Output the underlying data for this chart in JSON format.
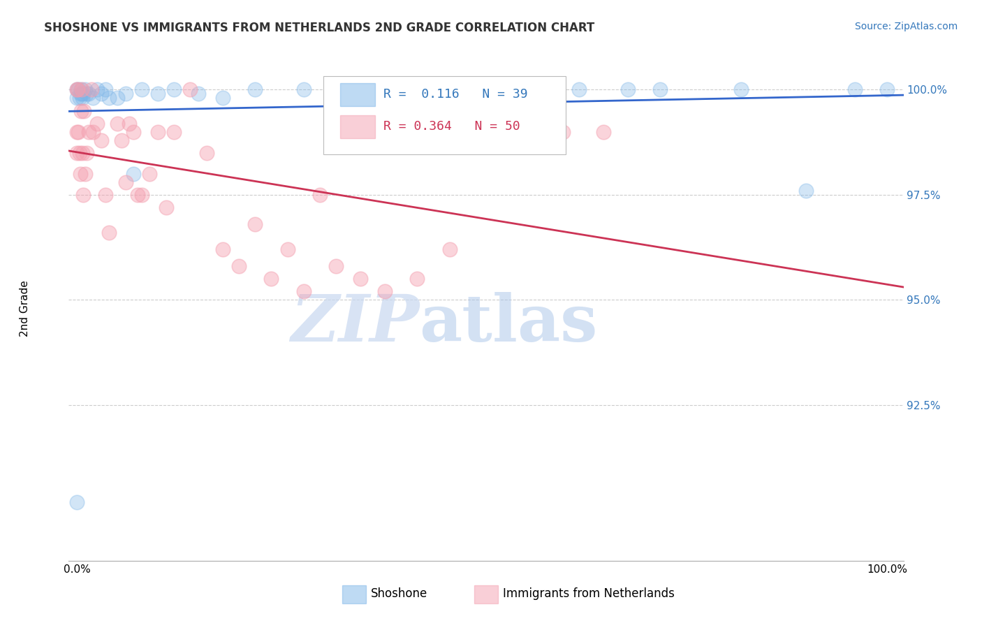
{
  "title": "SHOSHONE VS IMMIGRANTS FROM NETHERLANDS 2ND GRADE CORRELATION CHART",
  "source_text": "Source: ZipAtlas.com",
  "ylabel": "2nd Grade",
  "xlim": [
    -0.01,
    1.02
  ],
  "ylim": [
    0.888,
    1.008
  ],
  "yticks": [
    0.925,
    0.95,
    0.975,
    1.0
  ],
  "ytick_labels": [
    "92.5%",
    "95.0%",
    "97.5%",
    "100.0%"
  ],
  "xtick_positions": [
    0.0,
    0.5,
    1.0
  ],
  "xtick_labels": [
    "0.0%",
    "",
    "100.0%"
  ],
  "shoshone_color": "#7EB6E8",
  "immigrants_color": "#F4A0B0",
  "shoshone_line_color": "#3366CC",
  "immigrants_line_color": "#CC3355",
  "shoshone_R": 0.116,
  "shoshone_N": 39,
  "immigrants_R": 0.364,
  "immigrants_N": 50,
  "watermark_zip": "ZIP",
  "watermark_atlas": "atlas",
  "background_color": "#ffffff",
  "grid_color": "#cccccc",
  "shoshone_x": [
    0.0,
    0.0,
    0.0,
    0.002,
    0.003,
    0.004,
    0.005,
    0.006,
    0.007,
    0.008,
    0.01,
    0.012,
    0.015,
    0.02,
    0.025,
    0.03,
    0.035,
    0.04,
    0.05,
    0.06,
    0.07,
    0.08,
    0.1,
    0.12,
    0.15,
    0.18,
    0.22,
    0.28,
    0.32,
    0.36,
    0.5,
    0.55,
    0.62,
    0.68,
    0.72,
    0.82,
    0.9,
    0.96,
    1.0
  ],
  "shoshone_y": [
    0.902,
    0.998,
    1.0,
    1.0,
    0.998,
    0.999,
    1.0,
    0.999,
    0.998,
    0.999,
    1.0,
    0.999,
    0.999,
    0.998,
    1.0,
    0.999,
    1.0,
    0.998,
    0.998,
    0.999,
    0.98,
    1.0,
    0.999,
    1.0,
    0.999,
    0.998,
    1.0,
    1.0,
    1.0,
    1.0,
    1.0,
    1.0,
    1.0,
    1.0,
    1.0,
    1.0,
    0.976,
    1.0,
    1.0
  ],
  "immigrants_x": [
    0.0,
    0.0,
    0.0,
    0.001,
    0.002,
    0.003,
    0.004,
    0.005,
    0.006,
    0.007,
    0.008,
    0.009,
    0.01,
    0.012,
    0.015,
    0.018,
    0.02,
    0.025,
    0.03,
    0.035,
    0.04,
    0.05,
    0.055,
    0.06,
    0.065,
    0.07,
    0.075,
    0.08,
    0.09,
    0.1,
    0.11,
    0.12,
    0.14,
    0.16,
    0.18,
    0.2,
    0.22,
    0.24,
    0.26,
    0.28,
    0.3,
    0.32,
    0.35,
    0.38,
    0.42,
    0.46,
    0.5,
    0.55,
    0.6,
    0.65
  ],
  "immigrants_y": [
    0.985,
    0.99,
    1.0,
    1.0,
    0.99,
    0.985,
    0.98,
    0.995,
    1.0,
    0.985,
    0.975,
    0.995,
    0.98,
    0.985,
    0.99,
    1.0,
    0.99,
    0.992,
    0.988,
    0.975,
    0.966,
    0.992,
    0.988,
    0.978,
    0.992,
    0.99,
    0.975,
    0.975,
    0.98,
    0.99,
    0.972,
    0.99,
    1.0,
    0.985,
    0.962,
    0.958,
    0.968,
    0.955,
    0.962,
    0.952,
    0.975,
    0.958,
    0.955,
    0.952,
    0.955,
    0.962,
    0.99,
    0.99,
    0.99,
    0.99
  ]
}
